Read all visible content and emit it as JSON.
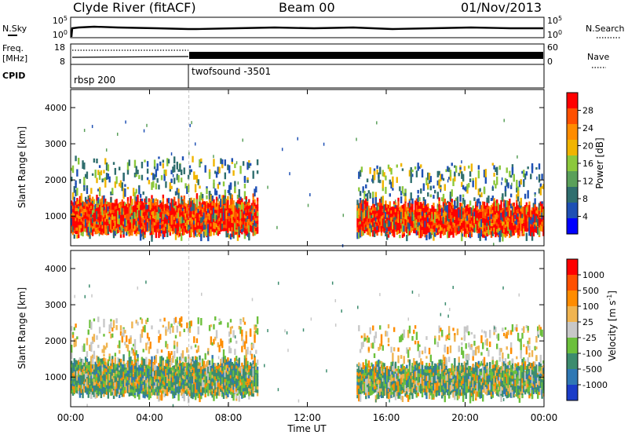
{
  "header": {
    "station": "Clyde River (fitACF)",
    "beam": "Beam 00",
    "date": "01/Nov/2013"
  },
  "top_panels": {
    "nsky_label": "N.Sky",
    "nsky_ticks": [
      "10^5",
      "10^0"
    ],
    "nsearch_label": "N.Search",
    "nsearch_ticks": [
      "10^5",
      "10^0"
    ],
    "freq_label_1": "Freq.",
    "freq_label_2": "[MHz]",
    "freq_ticks": [
      "18",
      "8"
    ],
    "nave_label": "Nave",
    "nave_ticks": [
      "60",
      "0"
    ],
    "cpid_label": "CPID",
    "cpid_segments": [
      "rbsp 200",
      "twofsound -3501"
    ]
  },
  "chart_data": [
    {
      "type": "heatmap",
      "parameter": "Power",
      "ylabel": "Slant Range [km]",
      "yticks": [
        "4000",
        "3000",
        "2000",
        "1000"
      ],
      "ylim": [
        180,
        4500
      ],
      "colorbar_label": "Power [dB]",
      "colorbar_ticks": [
        "28",
        "24",
        "20",
        "16",
        "12",
        "8",
        "4"
      ],
      "colorbar_colors": [
        "#0000ff",
        "#1e50b4",
        "#2f6e6e",
        "#5aa05a",
        "#8cc83c",
        "#f0b400",
        "#ff8c00",
        "#ff5000",
        "#ff0000"
      ],
      "x_ticks": [
        "00:00",
        "04:00",
        "08:00",
        "12:00",
        "16:00",
        "20:00",
        "00:00"
      ],
      "xlabel": "",
      "cpid_change": "06:00",
      "echo_regions": [
        {
          "t_start": 0.0,
          "t_end": 9.5,
          "r_min": 400,
          "r_max": 2600,
          "core_min": 500,
          "core_max": 1400
        },
        {
          "t_start": 14.5,
          "t_end": 24.0,
          "r_min": 400,
          "r_max": 2400,
          "core_min": 500,
          "core_max": 1300
        }
      ]
    },
    {
      "type": "heatmap",
      "parameter": "Velocity",
      "ylabel": "Slant Range [km]",
      "yticks": [
        "4000",
        "3000",
        "2000",
        "1000"
      ],
      "ylim": [
        180,
        4500
      ],
      "colorbar_label": "Velocity [m s^-1]",
      "colorbar_ticks": [
        "1000",
        "500",
        "100",
        "25",
        "-25",
        "-100",
        "-500",
        "-1000"
      ],
      "colorbar_colors": [
        "#1a3cc8",
        "#2f78b4",
        "#3c8c6e",
        "#6cc03c",
        "#c8c8c8",
        "#f0b450",
        "#ff8c00",
        "#ff5000",
        "#ff0000"
      ],
      "x_ticks": [
        "00:00",
        "04:00",
        "08:00",
        "12:00",
        "16:00",
        "20:00",
        "00:00"
      ],
      "xlabel": "Time UT",
      "cpid_change": "06:00",
      "echo_regions": [
        {
          "t_start": 0.0,
          "t_end": 9.5,
          "r_min": 400,
          "r_max": 2600,
          "core_min": 500,
          "core_max": 1400
        },
        {
          "t_start": 14.5,
          "t_end": 24.0,
          "r_min": 400,
          "r_max": 2400,
          "core_min": 500,
          "core_max": 1300
        }
      ]
    }
  ]
}
